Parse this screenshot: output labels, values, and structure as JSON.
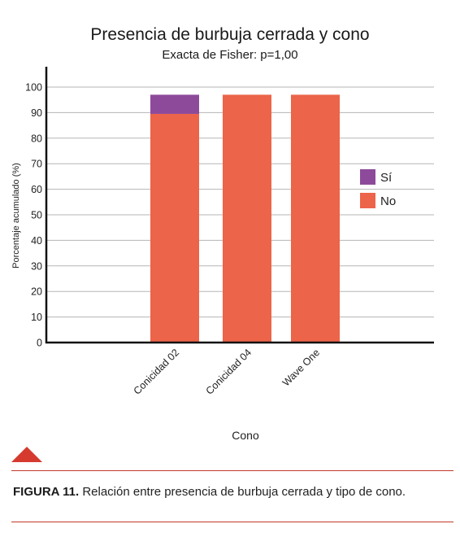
{
  "chart_data": {
    "type": "bar",
    "stacked": true,
    "title": "Presencia de burbuja cerrada y cono",
    "subtitle": "Exacta de Fisher: p=1,00",
    "xlabel": "Cono",
    "ylabel": "Porcentaje acumulado (%)",
    "ylim": [
      0,
      100
    ],
    "yticks": [
      0,
      10,
      20,
      30,
      40,
      50,
      60,
      70,
      80,
      90,
      100
    ],
    "grid": true,
    "legend_position": "right",
    "categories": [
      "Conicidad 02",
      "Conicidad 04",
      "Wave One"
    ],
    "series": [
      {
        "name": "No",
        "values": [
          89.5,
          97,
          97
        ],
        "color": "#ec6449"
      },
      {
        "name": "Sí",
        "values": [
          7.5,
          0,
          0
        ],
        "color": "#8e4a9a"
      }
    ],
    "legend_order": [
      "Sí",
      "No"
    ]
  },
  "caption": {
    "label": "FIGURA 11.",
    "text": "Relación entre presencia de burbuja cerrada y tipo de cono."
  },
  "colors": {
    "accent": "#d63a2f",
    "rule": "#c0392b"
  },
  "icons": {
    "marker": "triangle-marker-icon"
  }
}
